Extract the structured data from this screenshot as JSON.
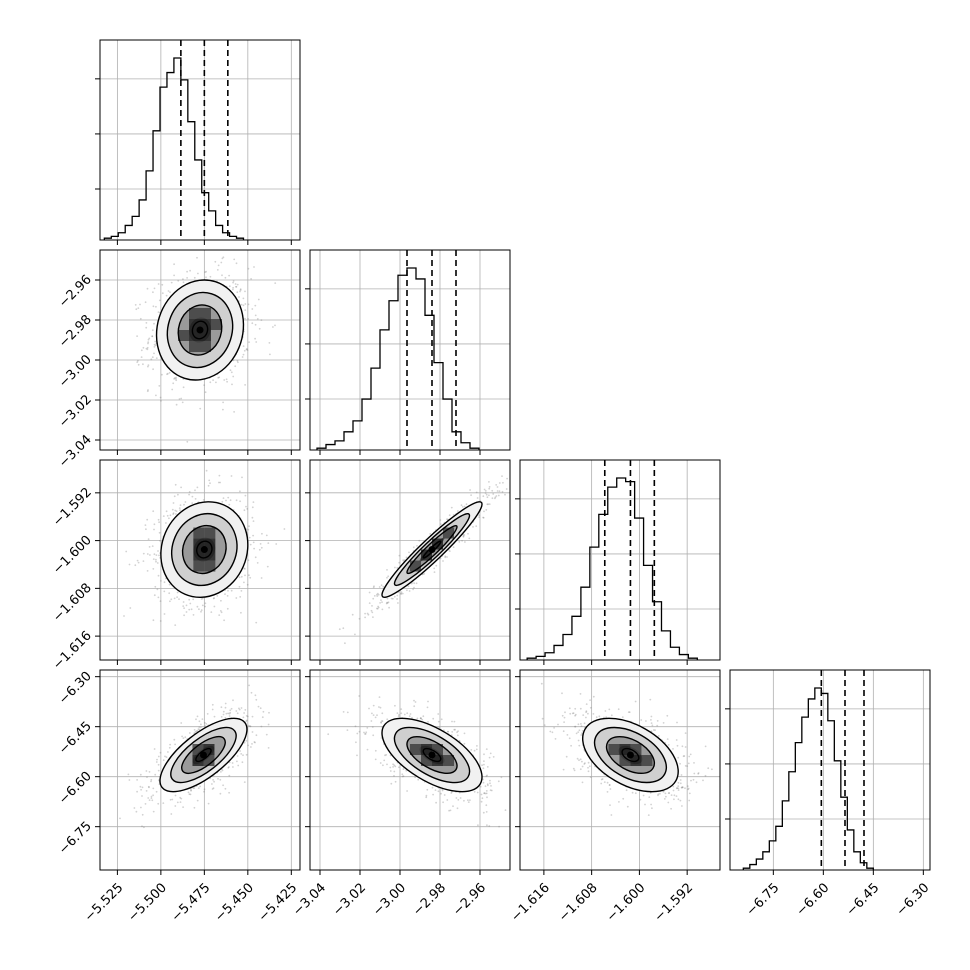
{
  "chart_data": {
    "type": "corner",
    "n_params": 4,
    "params": [
      {
        "ticks": [
          -5.525,
          -5.5,
          -5.475,
          -5.45,
          -5.425
        ],
        "tick_labels": [
          "−5.525",
          "−5.500",
          "−5.475",
          "−5.450",
          "−5.425"
        ],
        "range": [
          -5.535,
          -5.42
        ],
        "quantiles": [
          -5.4885,
          -5.475,
          -5.4615
        ],
        "hist_edges_start": -5.5325,
        "hist_bin_width": 0.004,
        "hist_counts": [
          1,
          2,
          4,
          8,
          13,
          22,
          38,
          60,
          84,
          92,
          100,
          88,
          65,
          44,
          26,
          16,
          8,
          4,
          2,
          1
        ]
      },
      {
        "ticks": [
          -3.04,
          -3.02,
          -3.0,
          -2.98,
          -2.96
        ],
        "tick_labels": [
          "−3.04",
          "−3.02",
          "−3.00",
          "−2.98",
          "−2.96"
        ],
        "range": [
          -3.045,
          -2.945
        ],
        "quantiles": [
          -2.9965,
          -2.984,
          -2.972
        ],
        "hist_edges_start": -3.0415,
        "hist_bin_width": 0.0045,
        "hist_counts": [
          1,
          3,
          5,
          10,
          16,
          28,
          45,
          66,
          82,
          96,
          100,
          94,
          74,
          48,
          28,
          10,
          4,
          1
        ]
      },
      {
        "ticks": [
          -1.616,
          -1.608,
          -1.6,
          -1.592
        ],
        "tick_labels": [
          "−1.616",
          "−1.608",
          "−1.600",
          "−1.592"
        ],
        "range": [
          -1.62,
          -1.5865
        ],
        "quantiles": [
          -1.6058,
          -1.6015,
          -1.5975
        ],
        "hist_edges_start": -1.6188,
        "hist_bin_width": 0.0015,
        "hist_counts": [
          1,
          2,
          4,
          8,
          14,
          24,
          40,
          62,
          80,
          95,
          100,
          98,
          78,
          52,
          32,
          16,
          7,
          3,
          1
        ]
      },
      {
        "ticks": [
          -6.75,
          -6.6,
          -6.45,
          -6.3
        ],
        "tick_labels": [
          "−6.75",
          "−6.60",
          "−6.45",
          "−6.30"
        ],
        "range": [
          -6.88,
          -6.28
        ],
        "quantiles": [
          -6.606,
          -6.535,
          -6.478
        ],
        "hist_edges_start": -6.84,
        "hist_bin_width": 0.0195,
        "hist_counts": [
          1,
          3,
          6,
          10,
          16,
          24,
          38,
          54,
          70,
          84,
          94,
          100,
          97,
          82,
          60,
          40,
          22,
          10,
          4,
          1
        ]
      }
    ],
    "pairs": [
      {
        "row": 1,
        "col": 0,
        "mean": [
          -5.4775,
          -2.985
        ],
        "sd": [
          0.0125,
          0.0125
        ],
        "rho": 0.1
      },
      {
        "row": 2,
        "col": 0,
        "mean": [
          -5.475,
          -1.6015
        ],
        "sd": [
          0.0125,
          0.004
        ],
        "rho": 0.1
      },
      {
        "row": 2,
        "col": 1,
        "mean": [
          -2.984,
          -1.6015
        ],
        "sd": [
          0.0125,
          0.004
        ],
        "rho": 0.95
      },
      {
        "row": 3,
        "col": 0,
        "mean": [
          -5.4755,
          -6.535
        ],
        "sd": [
          0.0125,
          0.055
        ],
        "rho": 0.7
      },
      {
        "row": 3,
        "col": 1,
        "mean": [
          -2.984,
          -6.535
        ],
        "sd": [
          0.0125,
          0.055
        ],
        "rho": -0.6
      },
      {
        "row": 3,
        "col": 2,
        "mean": [
          -1.6015,
          -6.535
        ],
        "sd": [
          0.004,
          0.055
        ],
        "rho": -0.45
      }
    ],
    "contour_levels_sigma": [
      0.5,
      1.0,
      1.5,
      2.0
    ],
    "grid": true,
    "legend": "none"
  }
}
